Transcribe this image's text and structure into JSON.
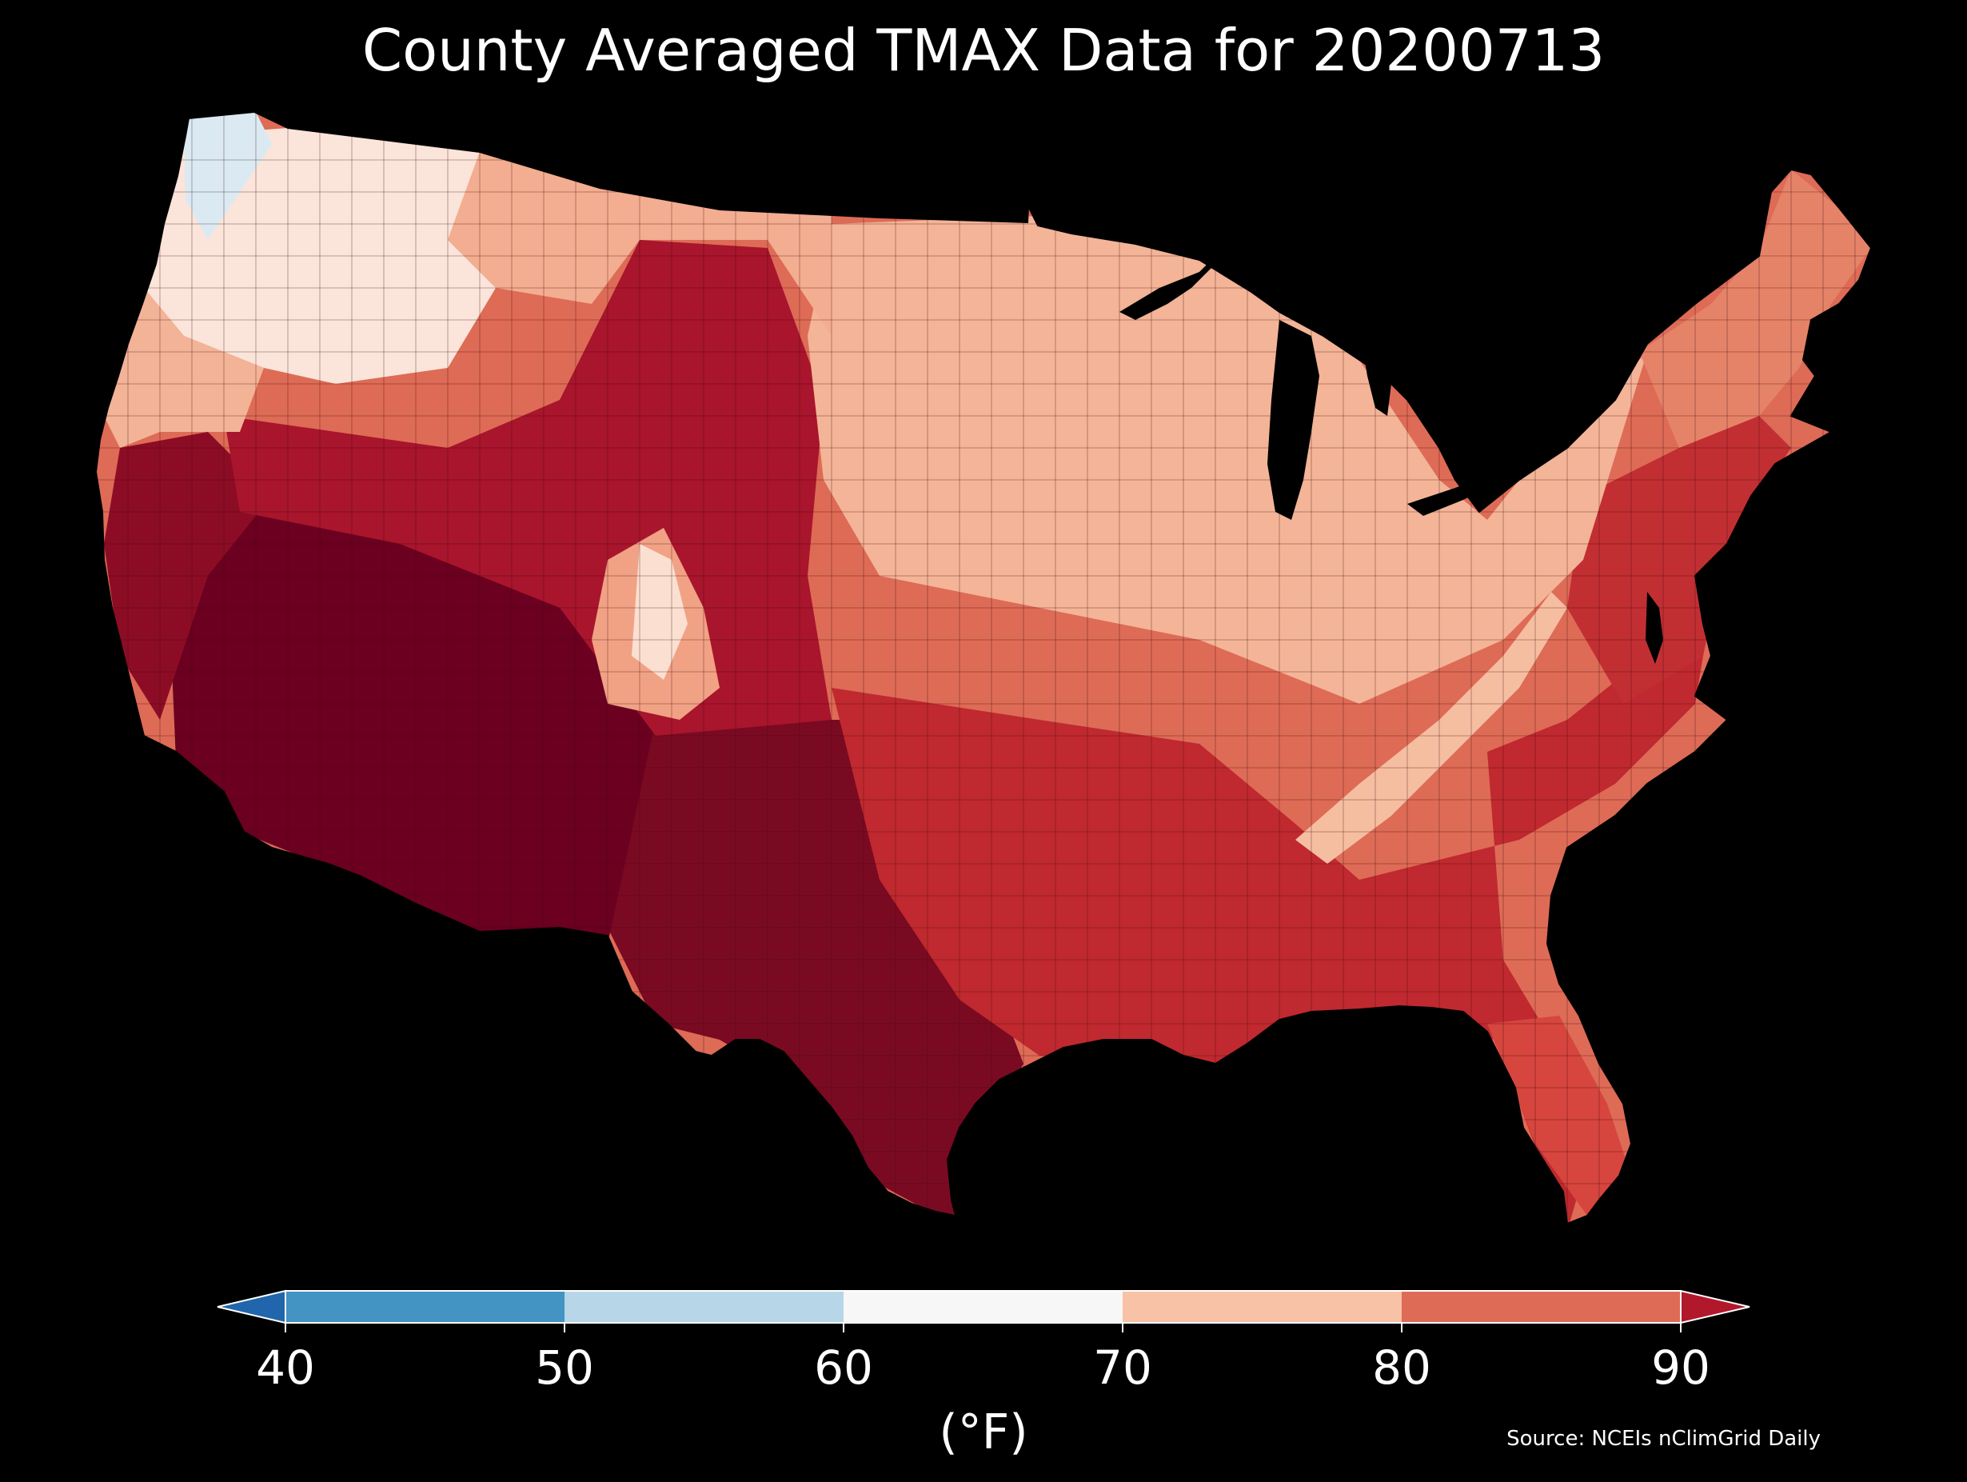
{
  "map": {
    "title": "County Averaged TMAX Data for 20200713",
    "source": "Source: NCEIs nClimGrid Daily",
    "colors": {
      "background": "#000000",
      "border": "#1a0000",
      "lake": "#000000"
    },
    "colorbar": {
      "units": "(°F)",
      "ticks": [
        "40",
        "50",
        "60",
        "70",
        "80",
        "90"
      ],
      "bins": [
        {
          "range": "<40",
          "color": "#2166ac"
        },
        {
          "range": "40-50",
          "color": "#4393c3"
        },
        {
          "range": "50-60",
          "color": "#b7d7e8"
        },
        {
          "range": "60-70",
          "color": "#f7f7f7"
        },
        {
          "range": "70-80",
          "color": "#f8c2a6"
        },
        {
          "range": "80-90",
          "color": "#de6b56"
        },
        {
          "range": ">90",
          "color": "#b2182b"
        }
      ]
    },
    "regions": [
      {
        "name": "pacific-northwest-coast",
        "tmax_range": "50-60",
        "color": "#dbeaf2"
      },
      {
        "name": "northern-rockies",
        "tmax_range": "60-70",
        "color": "#fbe4d9"
      },
      {
        "name": "northern-plains",
        "tmax_range": "70-80",
        "color": "#f3ad90"
      },
      {
        "name": "upper-midwest-great-lakes",
        "tmax_range": "70-80",
        "color": "#f4b497"
      },
      {
        "name": "appalachians",
        "tmax_range": "70-80",
        "color": "#f6bea1"
      },
      {
        "name": "new-england",
        "tmax_range": "80-90",
        "color": "#e58369"
      },
      {
        "name": "mid-atlantic",
        "tmax_range": ">90",
        "color": "#c22f33"
      },
      {
        "name": "southeast",
        "tmax_range": ">90",
        "color": "#c0292f"
      },
      {
        "name": "florida",
        "tmax_range": "80-90",
        "color": "#d6453e"
      },
      {
        "name": "central-plains-wyoming",
        "tmax_range": ">90",
        "color": "#a9152c"
      },
      {
        "name": "southern-plains-texas",
        "tmax_range": ">90",
        "color": "#7a0a22"
      },
      {
        "name": "desert-southwest",
        "tmax_range": ">90",
        "color": "#6b0020"
      },
      {
        "name": "california-central-valley",
        "tmax_range": ">90",
        "color": "#8d0c25"
      },
      {
        "name": "colorado-rockies",
        "tmax_range": "70-80",
        "color": "#f1a285"
      }
    ]
  }
}
